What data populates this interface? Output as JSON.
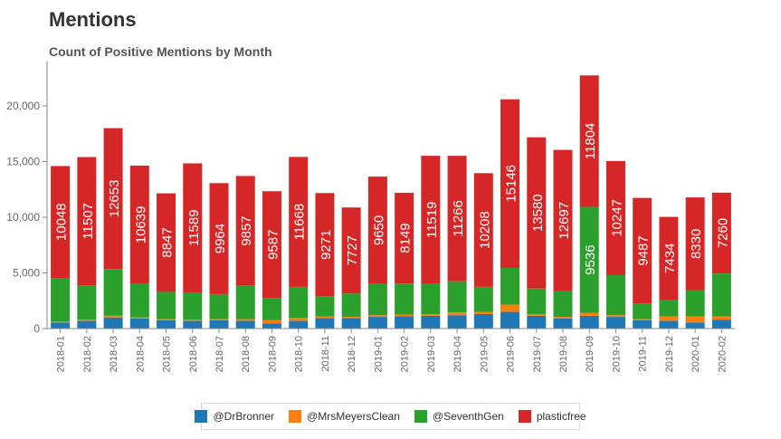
{
  "header": {
    "title": "Mentions",
    "subtitle": "Count of Positive Mentions by Month"
  },
  "chart_data": {
    "type": "bar",
    "stacked": true,
    "title": "Count of Positive Mentions by Month",
    "xlabel": "",
    "ylabel": "",
    "ylim": [
      0,
      24000
    ],
    "yticks": [
      0,
      5000,
      10000,
      15000,
      20000
    ],
    "ytick_labels": [
      "0",
      "5,000",
      "10,000",
      "15,000",
      "20,000"
    ],
    "grid": false,
    "legend_position": "bottom",
    "categories": [
      "2018-01",
      "2018-02",
      "2018-03",
      "2018-04",
      "2018-05",
      "2018-06",
      "2018-07",
      "2018-08",
      "2018-09",
      "2018-10",
      "2018-11",
      "2018-12",
      "2019-01",
      "2019-02",
      "2019-03",
      "2019-04",
      "2019-05",
      "2019-06",
      "2019-07",
      "2019-08",
      "2019-09",
      "2019-10",
      "2019-11",
      "2019-12",
      "2020-01",
      "2020-02"
    ],
    "series": [
      {
        "name": "@DrBronner",
        "color": "#1f77b4",
        "values": [
          550,
          700,
          1000,
          900,
          750,
          700,
          750,
          700,
          450,
          700,
          950,
          950,
          1050,
          1100,
          1150,
          1200,
          1300,
          1500,
          1150,
          900,
          1150,
          1050,
          750,
          700,
          550,
          800
        ]
      },
      {
        "name": "@MrsMeyersClean",
        "color": "#ff7f0e",
        "values": [
          100,
          100,
          150,
          100,
          100,
          100,
          100,
          150,
          300,
          250,
          150,
          100,
          150,
          150,
          150,
          250,
          200,
          650,
          150,
          150,
          250,
          150,
          100,
          400,
          550,
          300
        ]
      },
      {
        "name": "@SeventhGen",
        "color": "#2ca02c",
        "values": [
          3900,
          3100,
          4200,
          3000,
          2450,
          2450,
          2250,
          3000,
          2000,
          2800,
          1800,
          2100,
          2800,
          2800,
          2700,
          2800,
          2250,
          3300,
          2300,
          2300,
          9536,
          3600,
          1400,
          1500,
          2350,
          3850
        ]
      },
      {
        "name": "plasticfree",
        "color": "#d62728",
        "values": [
          10048,
          11507,
          12653,
          10639,
          8847,
          11589,
          9964,
          9857,
          9587,
          11668,
          9271,
          7727,
          9650,
          8149,
          11519,
          11266,
          10208,
          15146,
          13580,
          12697,
          11804,
          10247,
          9487,
          7434,
          8330,
          7260
        ]
      }
    ],
    "data_labels_series": "plasticfree",
    "extra_data_labels": [
      {
        "series": "@SeventhGen",
        "category": "2019-09",
        "value": "9536"
      }
    ]
  }
}
